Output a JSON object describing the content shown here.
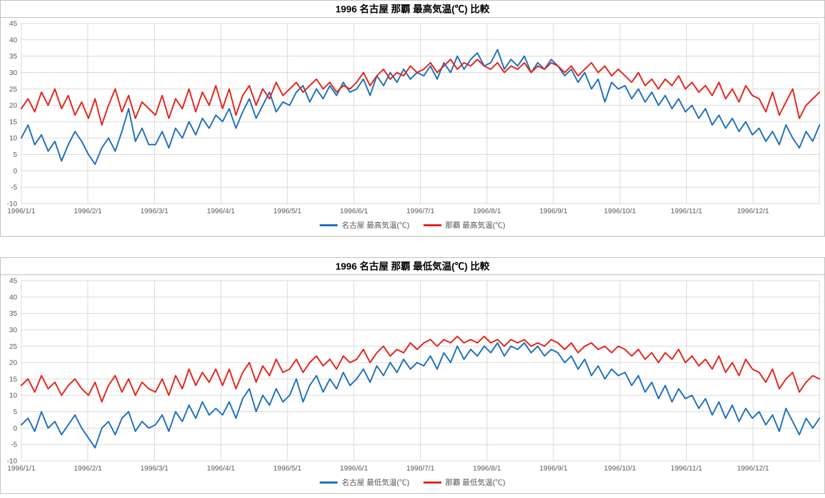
{
  "style": {
    "background": "#ffffff",
    "panel_border": "#bfbfbf",
    "gridline_color": "#d9d9d9",
    "tick_text_color": "#595959",
    "nagoya_color": "#1c6fbe",
    "naha_color": "#e52219"
  },
  "chart_data": [
    {
      "type": "line",
      "title": "1996 名古屋 那覇 最高気温(℃) 比較",
      "ylim": [
        -10,
        45
      ],
      "grid": true,
      "legend_position": "bottom",
      "y_ticks": [
        45,
        40,
        35,
        30,
        25,
        20,
        15,
        10,
        5,
        0,
        -5,
        -10
      ],
      "x_tick_labels": [
        "1996/1/1",
        "1996/2/1",
        "1996/3/1",
        "1996/4/1",
        "1996/5/1",
        "1996/6/1",
        "1996/7/1",
        "1996/8/1",
        "1996/9/1",
        "1996/10/1",
        "1996/11/1",
        "1996/12/1"
      ],
      "series": [
        {
          "name": "名古屋 最高気温(℃)",
          "color": "#1c6fbe",
          "values": [
            10,
            14,
            8,
            11,
            6,
            9,
            3,
            8,
            12,
            9,
            5,
            2,
            7,
            10,
            6,
            12,
            19,
            9,
            13,
            8,
            8,
            12,
            7,
            13,
            10,
            15,
            11,
            16,
            13,
            17,
            15,
            19,
            13,
            18,
            22,
            16,
            20,
            24,
            18,
            21,
            20,
            24,
            26,
            21,
            25,
            22,
            26,
            23,
            27,
            24,
            25,
            28,
            23,
            29,
            26,
            30,
            27,
            31,
            28,
            30,
            29,
            32,
            28,
            33,
            30,
            35,
            31,
            34,
            36,
            32,
            33,
            37,
            31,
            34,
            32,
            35,
            30,
            33,
            31,
            34,
            32,
            29,
            31,
            27,
            30,
            25,
            28,
            21,
            27,
            25,
            26,
            22,
            25,
            21,
            24,
            20,
            23,
            19,
            22,
            18,
            20,
            16,
            19,
            14,
            17,
            13,
            16,
            12,
            15,
            11,
            13,
            9,
            12,
            8,
            14,
            10,
            7,
            12,
            9,
            14
          ]
        },
        {
          "name": "那覇 最高気温(℃)",
          "color": "#e52219",
          "values": [
            19,
            22,
            18,
            24,
            20,
            25,
            19,
            23,
            17,
            21,
            16,
            22,
            14,
            20,
            25,
            18,
            23,
            16,
            21,
            19,
            17,
            23,
            16,
            22,
            19,
            25,
            18,
            24,
            20,
            26,
            19,
            25,
            17,
            23,
            26,
            20,
            25,
            22,
            27,
            23,
            25,
            27,
            24,
            26,
            28,
            25,
            27,
            24,
            26,
            25,
            27,
            30,
            26,
            29,
            31,
            28,
            30,
            29,
            32,
            30,
            31,
            33,
            30,
            32,
            34,
            31,
            33,
            32,
            34,
            32,
            31,
            33,
            30,
            32,
            31,
            33,
            30,
            32,
            31,
            33,
            32,
            30,
            32,
            29,
            31,
            33,
            30,
            32,
            29,
            31,
            29,
            27,
            30,
            26,
            28,
            25,
            28,
            26,
            29,
            25,
            27,
            24,
            26,
            23,
            27,
            22,
            25,
            21,
            26,
            23,
            22,
            18,
            24,
            17,
            21,
            25,
            16,
            20,
            22,
            24
          ]
        }
      ]
    },
    {
      "type": "line",
      "title": "1996 名古屋 那覇 最低気温(℃) 比較",
      "ylim": [
        -10,
        45
      ],
      "grid": true,
      "legend_position": "bottom",
      "y_ticks": [
        45,
        40,
        35,
        30,
        25,
        20,
        15,
        10,
        5,
        0,
        -5,
        -10
      ],
      "x_tick_labels": [
        "1996/1/1",
        "1996/2/1",
        "1996/3/1",
        "1996/4/1",
        "1996/5/1",
        "1996/6/1",
        "1996/7/1",
        "1996/8/1",
        "1996/9/1",
        "1996/10/1",
        "1996/11/1",
        "1996/12/1"
      ],
      "series": [
        {
          "name": "名古屋 最低気温(℃)",
          "color": "#1c6fbe",
          "values": [
            1,
            3,
            -1,
            5,
            0,
            2,
            -2,
            1,
            4,
            0,
            -3,
            -6,
            0,
            2,
            -2,
            3,
            5,
            -1,
            2,
            0,
            1,
            4,
            -1,
            5,
            2,
            7,
            3,
            8,
            4,
            6,
            4,
            8,
            3,
            9,
            12,
            5,
            10,
            7,
            12,
            8,
            10,
            15,
            8,
            13,
            16,
            11,
            15,
            12,
            17,
            13,
            15,
            18,
            14,
            19,
            16,
            20,
            17,
            21,
            18,
            20,
            19,
            22,
            18,
            23,
            20,
            25,
            21,
            24,
            22,
            25,
            23,
            26,
            22,
            25,
            24,
            26,
            23,
            25,
            22,
            24,
            23,
            20,
            22,
            18,
            21,
            16,
            19,
            15,
            18,
            16,
            17,
            13,
            16,
            11,
            14,
            9,
            13,
            8,
            12,
            9,
            10,
            6,
            9,
            4,
            8,
            3,
            7,
            2,
            6,
            3,
            5,
            1,
            4,
            -1,
            6,
            2,
            -2,
            3,
            0,
            3
          ]
        },
        {
          "name": "那覇 最低気温(℃)",
          "color": "#e52219",
          "values": [
            13,
            15,
            11,
            16,
            12,
            14,
            10,
            13,
            15,
            12,
            10,
            14,
            8,
            13,
            16,
            11,
            15,
            10,
            14,
            12,
            11,
            15,
            10,
            16,
            12,
            18,
            13,
            17,
            14,
            18,
            13,
            18,
            12,
            17,
            20,
            14,
            19,
            16,
            21,
            17,
            18,
            21,
            17,
            20,
            22,
            19,
            21,
            18,
            22,
            20,
            21,
            24,
            20,
            23,
            25,
            22,
            24,
            23,
            26,
            24,
            26,
            27,
            25,
            27,
            26,
            28,
            26,
            27,
            26,
            28,
            26,
            27,
            25,
            27,
            26,
            27,
            25,
            26,
            25,
            27,
            26,
            24,
            26,
            23,
            25,
            26,
            24,
            25,
            23,
            25,
            24,
            22,
            24,
            21,
            23,
            20,
            23,
            21,
            24,
            20,
            22,
            19,
            21,
            18,
            22,
            17,
            20,
            16,
            21,
            18,
            17,
            14,
            18,
            12,
            15,
            17,
            11,
            14,
            16,
            15
          ]
        }
      ]
    }
  ]
}
